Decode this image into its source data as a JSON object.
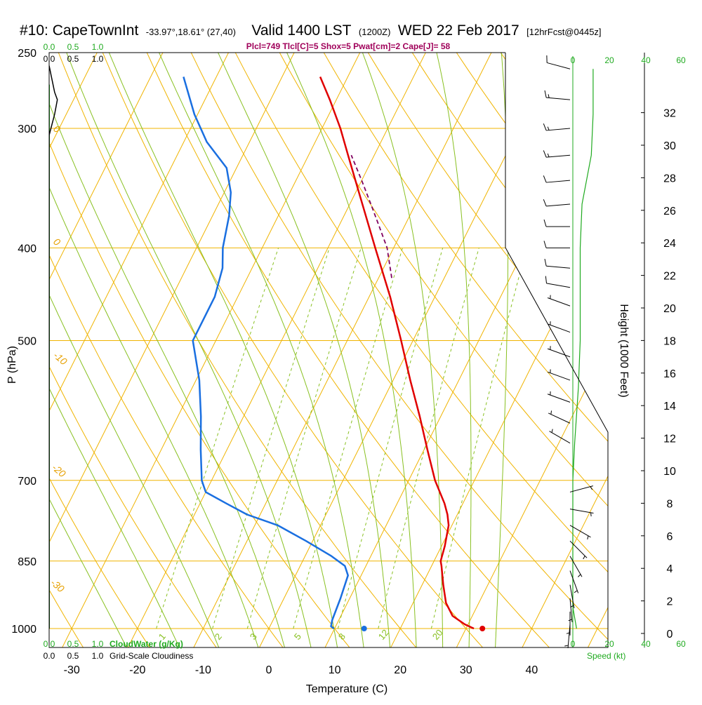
{
  "header": {
    "station": "#10: CapeTownInt",
    "coords": "-33.97°,18.61° (27,40)",
    "valid": "Valid 1400 LST",
    "zulu": "(1200Z)",
    "date": "WED 22 Feb 2017",
    "forecast": "[12hrFcst@0445z]",
    "indices": "Plcl=749 Tlcl[C]=5 Shox=5 Pwat[cm]=2 Cape[J]= 58"
  },
  "colors": {
    "isobar": "#f0b400",
    "isotherm": "#f0b400",
    "dry_adiabat": "#f0b400",
    "moist_adiabat": "#88c020",
    "mixing_ratio": "#88c020",
    "temperature": "#e00000",
    "dewpoint": "#1a6fe0",
    "parcel": "#800060",
    "cloud": "#1faa1f",
    "wind": "#000000"
  },
  "chart_data": {
    "type": "line",
    "subtype": "skew-T log-P sounding",
    "ylabel": "P (hPa)",
    "xlabel": "Temperature (C)",
    "y2label": "Height (1000 Feet)",
    "x_ticks": [
      -30,
      -20,
      -10,
      0,
      10,
      20,
      30,
      40
    ],
    "xlim": [
      -33,
      45
    ],
    "p_ticks": [
      250,
      300,
      400,
      500,
      700,
      850,
      1000
    ],
    "p_range": [
      1020,
      250
    ],
    "height_ticks": [
      0,
      2,
      4,
      6,
      8,
      10,
      12,
      14,
      16,
      18,
      20,
      22,
      24,
      26,
      28,
      30,
      32
    ],
    "cloud_scale_top": [
      "0.0",
      "0.5",
      "1.0"
    ],
    "cloud_scale_bottom": [
      "0.0",
      "0.5",
      "1.0"
    ],
    "cloud_water_label": "CloudWater (g/Kg)",
    "cloudiness_label": "Grid-Scale Cloudiness",
    "wind_scale": [
      "0",
      "20",
      "40",
      "60"
    ],
    "wind_label": "Speed (kt)",
    "isotherm_labels": [
      "0",
      "10",
      "20",
      "30"
    ],
    "dry_adiabat_labels": [
      "0",
      "0",
      "-10",
      "-20",
      "-30"
    ],
    "mixing_ratio_labels": [
      "1",
      "2",
      "3",
      "5",
      "8",
      "12",
      "20"
    ],
    "series": [
      {
        "name": "Temperature",
        "points": [
          {
            "p": 1000,
            "t": 31.2
          },
          {
            "p": 990,
            "t": 29.5
          },
          {
            "p": 970,
            "t": 27.0
          },
          {
            "p": 940,
            "t": 25.0
          },
          {
            "p": 900,
            "t": 23.2
          },
          {
            "p": 860,
            "t": 21.5
          },
          {
            "p": 850,
            "t": 21.0
          },
          {
            "p": 820,
            "t": 20.5
          },
          {
            "p": 780,
            "t": 19.5
          },
          {
            "p": 760,
            "t": 18.5
          },
          {
            "p": 740,
            "t": 17.2
          },
          {
            "p": 700,
            "t": 14.0
          },
          {
            "p": 650,
            "t": 10.5
          },
          {
            "p": 600,
            "t": 6.8
          },
          {
            "p": 550,
            "t": 2.6
          },
          {
            "p": 500,
            "t": -1.8
          },
          {
            "p": 450,
            "t": -6.8
          },
          {
            "p": 400,
            "t": -12.8
          },
          {
            "p": 350,
            "t": -19.5
          },
          {
            "p": 320,
            "t": -24.0
          },
          {
            "p": 300,
            "t": -27.2
          },
          {
            "p": 280,
            "t": -31.0
          },
          {
            "p": 265,
            "t": -34.2
          }
        ]
      },
      {
        "name": "Dewpoint",
        "points": [
          {
            "p": 1000,
            "t": 9.9
          },
          {
            "p": 995,
            "t": 9.3
          },
          {
            "p": 980,
            "t": 9.0
          },
          {
            "p": 930,
            "t": 8.6
          },
          {
            "p": 880,
            "t": 8.0
          },
          {
            "p": 860,
            "t": 6.8
          },
          {
            "p": 840,
            "t": 4.0
          },
          {
            "p": 810,
            "t": -1.0
          },
          {
            "p": 780,
            "t": -6.5
          },
          {
            "p": 760,
            "t": -12.0
          },
          {
            "p": 740,
            "t": -16.0
          },
          {
            "p": 720,
            "t": -20.0
          },
          {
            "p": 700,
            "t": -21.5
          },
          {
            "p": 650,
            "t": -24.0
          },
          {
            "p": 600,
            "t": -26.5
          },
          {
            "p": 550,
            "t": -29.5
          },
          {
            "p": 500,
            "t": -33.5
          },
          {
            "p": 480,
            "t": -33.5
          },
          {
            "p": 450,
            "t": -33.5
          },
          {
            "p": 420,
            "t": -34.5
          },
          {
            "p": 400,
            "t": -36.0
          },
          {
            "p": 370,
            "t": -37.5
          },
          {
            "p": 350,
            "t": -39.0
          },
          {
            "p": 330,
            "t": -41.5
          },
          {
            "p": 310,
            "t": -46.5
          },
          {
            "p": 290,
            "t": -50.5
          },
          {
            "p": 265,
            "t": -55.0
          }
        ]
      },
      {
        "name": "Parcel",
        "points": [
          {
            "p": 430,
            "t": -8.0
          },
          {
            "p": 400,
            "t": -11.0
          },
          {
            "p": 380,
            "t": -13.8
          },
          {
            "p": 360,
            "t": -16.8
          },
          {
            "p": 340,
            "t": -20.0
          },
          {
            "p": 320,
            "t": -23.5
          }
        ]
      }
    ],
    "surface_markers": [
      {
        "name": "Temperature",
        "p": 1000,
        "t": 32.5
      },
      {
        "name": "Dewpoint",
        "p": 1000,
        "t": 14.5
      }
    ],
    "cloudwater_profile": [
      {
        "p": 1000,
        "v": 0
      },
      {
        "p": 900,
        "v": 0
      },
      {
        "p": 700,
        "v": 0
      },
      {
        "p": 500,
        "v": 0
      },
      {
        "p": 400,
        "v": 0
      },
      {
        "p": 300,
        "v": 0
      },
      {
        "p": 270,
        "v": 0
      }
    ],
    "cloudiness_profile": [
      {
        "p": 1000,
        "v": 0
      },
      {
        "p": 500,
        "v": 0
      },
      {
        "p": 305,
        "v": 0
      },
      {
        "p": 290,
        "v": 0.12
      },
      {
        "p": 280,
        "v": 0.18
      },
      {
        "p": 275,
        "v": 0.12
      },
      {
        "p": 265,
        "v": 0.05
      },
      {
        "p": 258,
        "v": 0
      }
    ],
    "wind_speed_profile": [
      {
        "p": 1000,
        "kt": 2
      },
      {
        "p": 950,
        "kt": 0
      },
      {
        "p": 850,
        "kt": 0
      },
      {
        "p": 700,
        "kt": 0
      },
      {
        "p": 640,
        "kt": 1
      },
      {
        "p": 560,
        "kt": 3
      },
      {
        "p": 500,
        "kt": 4
      },
      {
        "p": 450,
        "kt": 4
      },
      {
        "p": 400,
        "kt": 4
      },
      {
        "p": 360,
        "kt": 5
      },
      {
        "p": 320,
        "kt": 10
      },
      {
        "p": 290,
        "kt": 11
      },
      {
        "p": 270,
        "kt": 11
      },
      {
        "p": 260,
        "kt": 11
      }
    ],
    "wind_barbs": [
      {
        "p": 260,
        "dir": 285,
        "kt": 10
      },
      {
        "p": 280,
        "dir": 275,
        "kt": 15
      },
      {
        "p": 300,
        "dir": 265,
        "kt": 15
      },
      {
        "p": 320,
        "dir": 265,
        "kt": 15
      },
      {
        "p": 340,
        "dir": 265,
        "kt": 10
      },
      {
        "p": 360,
        "dir": 265,
        "kt": 10
      },
      {
        "p": 380,
        "dir": 270,
        "kt": 10
      },
      {
        "p": 400,
        "dir": 270,
        "kt": 10
      },
      {
        "p": 420,
        "dir": 275,
        "kt": 10
      },
      {
        "p": 440,
        "dir": 280,
        "kt": 10
      },
      {
        "p": 460,
        "dir": 290,
        "kt": 5
      },
      {
        "p": 490,
        "dir": 290,
        "kt": 5
      },
      {
        "p": 520,
        "dir": 290,
        "kt": 5
      },
      {
        "p": 550,
        "dir": 290,
        "kt": 5
      },
      {
        "p": 580,
        "dir": 290,
        "kt": 5
      },
      {
        "p": 610,
        "dir": 295,
        "kt": 5
      },
      {
        "p": 640,
        "dir": 300,
        "kt": 5
      },
      {
        "p": 720,
        "dir": 75,
        "kt": 5
      },
      {
        "p": 750,
        "dir": 100,
        "kt": 5
      },
      {
        "p": 780,
        "dir": 120,
        "kt": 5
      },
      {
        "p": 810,
        "dir": 135,
        "kt": 5
      },
      {
        "p": 840,
        "dir": 150,
        "kt": 5
      },
      {
        "p": 870,
        "dir": 160,
        "kt": 5
      },
      {
        "p": 900,
        "dir": 170,
        "kt": 5
      },
      {
        "p": 930,
        "dir": 175,
        "kt": 5
      },
      {
        "p": 960,
        "dir": 180,
        "kt": 5
      },
      {
        "p": 990,
        "dir": 185,
        "kt": 5
      }
    ]
  }
}
